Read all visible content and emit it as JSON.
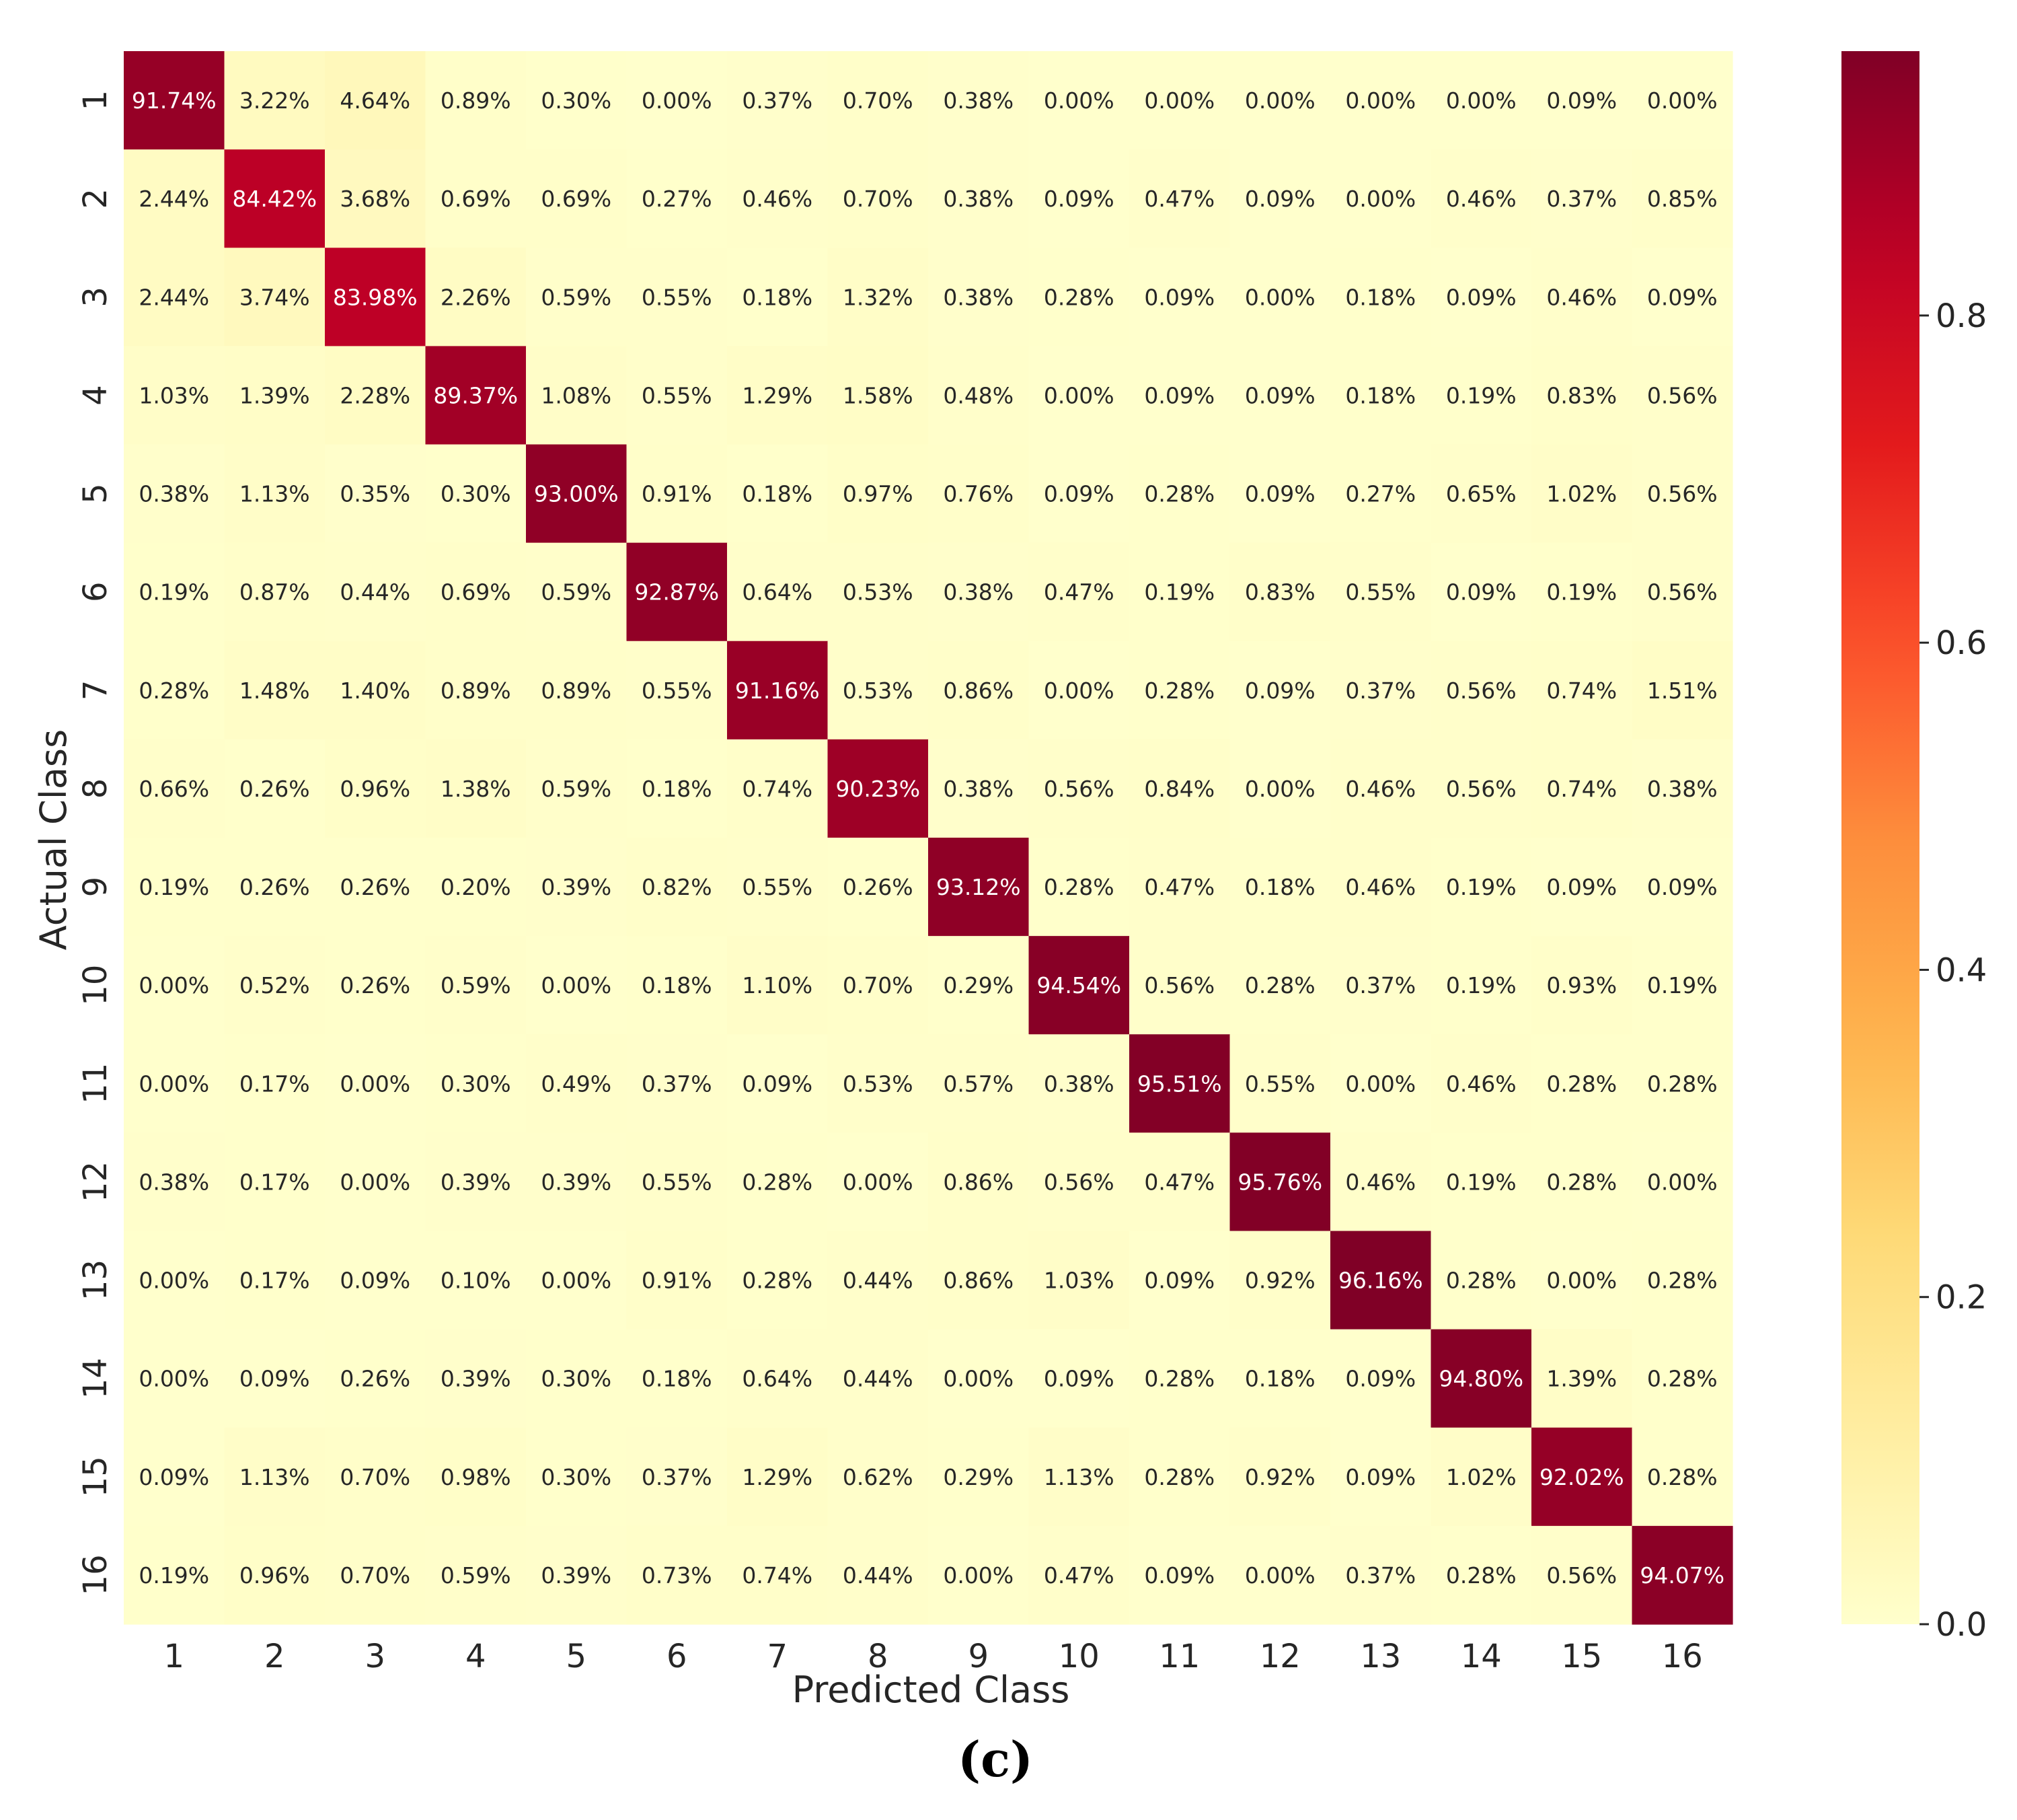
{
  "panel_label": "(c)",
  "chart_data": {
    "type": "heatmap",
    "title": "",
    "xlabel": "Predicted Class",
    "ylabel": "Actual Class",
    "x_categories": [
      "1",
      "2",
      "3",
      "4",
      "5",
      "6",
      "7",
      "8",
      "9",
      "10",
      "11",
      "12",
      "13",
      "14",
      "15",
      "16"
    ],
    "y_categories": [
      "1",
      "2",
      "3",
      "4",
      "5",
      "6",
      "7",
      "8",
      "9",
      "10",
      "11",
      "12",
      "13",
      "14",
      "15",
      "16"
    ],
    "values_percent": [
      [
        91.74,
        3.22,
        4.64,
        0.89,
        0.3,
        0.0,
        0.37,
        0.7,
        0.38,
        0.0,
        0.0,
        0.0,
        0.0,
        0.0,
        0.09,
        0.0
      ],
      [
        2.44,
        84.42,
        3.68,
        0.69,
        0.69,
        0.27,
        0.46,
        0.7,
        0.38,
        0.09,
        0.47,
        0.09,
        0.0,
        0.46,
        0.37,
        0.85
      ],
      [
        2.44,
        3.74,
        83.98,
        2.26,
        0.59,
        0.55,
        0.18,
        1.32,
        0.38,
        0.28,
        0.09,
        0.0,
        0.18,
        0.09,
        0.46,
        0.09
      ],
      [
        1.03,
        1.39,
        2.28,
        89.37,
        1.08,
        0.55,
        1.29,
        1.58,
        0.48,
        0.0,
        0.09,
        0.09,
        0.18,
        0.19,
        0.83,
        0.56
      ],
      [
        0.38,
        1.13,
        0.35,
        0.3,
        93.0,
        0.91,
        0.18,
        0.97,
        0.76,
        0.09,
        0.28,
        0.09,
        0.27,
        0.65,
        1.02,
        0.56
      ],
      [
        0.19,
        0.87,
        0.44,
        0.69,
        0.59,
        92.87,
        0.64,
        0.53,
        0.38,
        0.47,
        0.19,
        0.83,
        0.55,
        0.09,
        0.19,
        0.56
      ],
      [
        0.28,
        1.48,
        1.4,
        0.89,
        0.89,
        0.55,
        91.16,
        0.53,
        0.86,
        0.0,
        0.28,
        0.09,
        0.37,
        0.56,
        0.74,
        1.51
      ],
      [
        0.66,
        0.26,
        0.96,
        1.38,
        0.59,
        0.18,
        0.74,
        90.23,
        0.38,
        0.56,
        0.84,
        0.0,
        0.46,
        0.56,
        0.74,
        0.38
      ],
      [
        0.19,
        0.26,
        0.26,
        0.2,
        0.39,
        0.82,
        0.55,
        0.26,
        93.12,
        0.28,
        0.47,
        0.18,
        0.46,
        0.19,
        0.09,
        0.09
      ],
      [
        0.0,
        0.52,
        0.26,
        0.59,
        0.0,
        0.18,
        1.1,
        0.7,
        0.29,
        94.54,
        0.56,
        0.28,
        0.37,
        0.19,
        0.93,
        0.19
      ],
      [
        0.0,
        0.17,
        0.0,
        0.3,
        0.49,
        0.37,
        0.09,
        0.53,
        0.57,
        0.38,
        95.51,
        0.55,
        0.0,
        0.46,
        0.28,
        0.28
      ],
      [
        0.38,
        0.17,
        0.0,
        0.39,
        0.39,
        0.55,
        0.28,
        0.0,
        0.86,
        0.56,
        0.47,
        95.76,
        0.46,
        0.19,
        0.28,
        0.0
      ],
      [
        0.0,
        0.17,
        0.09,
        0.1,
        0.0,
        0.91,
        0.28,
        0.44,
        0.86,
        1.03,
        0.09,
        0.92,
        96.16,
        0.28,
        0.0,
        0.28
      ],
      [
        0.0,
        0.09,
        0.26,
        0.39,
        0.3,
        0.18,
        0.64,
        0.44,
        0.0,
        0.09,
        0.28,
        0.18,
        0.09,
        94.8,
        1.39,
        0.28
      ],
      [
        0.09,
        1.13,
        0.7,
        0.98,
        0.3,
        0.37,
        1.29,
        0.62,
        0.29,
        1.13,
        0.28,
        0.92,
        0.09,
        1.02,
        92.02,
        0.28
      ],
      [
        0.19,
        0.96,
        0.7,
        0.59,
        0.39,
        0.73,
        0.74,
        0.44,
        0.0,
        0.47,
        0.09,
        0.0,
        0.37,
        0.28,
        0.56,
        94.07
      ]
    ],
    "value_format": "percent_2dp",
    "colormap": "YlOrRd",
    "colorbar": {
      "range": [
        0.0,
        0.9616
      ],
      "ticks": [
        0.0,
        0.2,
        0.4,
        0.6,
        0.8
      ],
      "tick_labels": [
        "0.0",
        "0.2",
        "0.4",
        "0.6",
        "0.8"
      ]
    },
    "colors": {
      "low": "#ffffcc",
      "high": "#800026",
      "text_dark": "#262626",
      "text_light": "#ffffff"
    }
  }
}
